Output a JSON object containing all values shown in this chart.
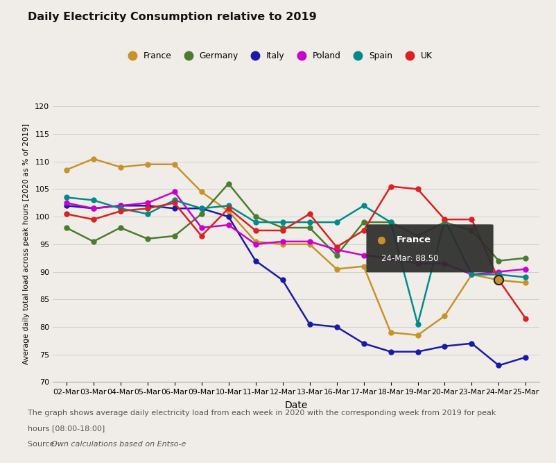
{
  "title": "Daily Electricity Consumption relative to 2019",
  "xlabel": "Date",
  "ylabel": "Average daily total load across peak hours [2020 as % of 2019]",
  "background_color": "#f0ede8",
  "plot_bg_color": "#f0ede8",
  "dates": [
    "02-Mar",
    "03-Mar",
    "04-Mar",
    "05-Mar",
    "06-Mar",
    "09-Mar",
    "10-Mar",
    "11-Mar",
    "12-Mar",
    "13-Mar",
    "16-Mar",
    "17-Mar",
    "18-Mar",
    "19-Mar",
    "20-Mar",
    "23-Mar",
    "24-Mar",
    "25-Mar"
  ],
  "series": {
    "France": {
      "color": "#c8922a",
      "values": [
        108.5,
        110.5,
        109.0,
        109.5,
        109.5,
        104.5,
        101.0,
        95.5,
        95.0,
        95.0,
        90.5,
        91.0,
        79.0,
        78.5,
        82.0,
        89.5,
        88.5,
        88.0
      ]
    },
    "Germany": {
      "color": "#4a7c2f",
      "values": [
        98.0,
        95.5,
        98.0,
        96.0,
        96.5,
        100.5,
        106.0,
        100.0,
        98.0,
        98.0,
        93.0,
        99.0,
        99.0,
        96.5,
        99.0,
        97.5,
        92.0,
        92.5
      ]
    },
    "Italy": {
      "color": "#1a1aaa",
      "values": [
        102.0,
        101.5,
        102.0,
        102.0,
        101.5,
        101.5,
        100.0,
        92.0,
        88.5,
        80.5,
        80.0,
        77.0,
        75.5,
        75.5,
        76.5,
        77.0,
        73.0,
        74.5
      ]
    },
    "Poland": {
      "color": "#cc00cc",
      "values": [
        102.5,
        101.5,
        102.0,
        102.5,
        104.5,
        98.0,
        98.5,
        95.0,
        95.5,
        95.5,
        94.0,
        93.0,
        92.5,
        91.5,
        91.5,
        89.5,
        90.0,
        90.5
      ]
    },
    "Spain": {
      "color": "#008b8b",
      "values": [
        103.5,
        103.0,
        101.5,
        100.5,
        103.0,
        101.5,
        102.0,
        99.0,
        99.0,
        99.0,
        99.0,
        102.0,
        99.0,
        80.5,
        99.5,
        89.5,
        89.5,
        89.0
      ]
    },
    "UK": {
      "color": "#dd2020",
      "values": [
        100.5,
        99.5,
        101.0,
        101.5,
        102.5,
        96.5,
        101.5,
        97.5,
        97.5,
        100.5,
        94.5,
        97.5,
        105.5,
        105.0,
        99.5,
        99.5,
        88.5,
        81.5
      ]
    }
  },
  "country_order": [
    "France",
    "Germany",
    "Italy",
    "Poland",
    "Spain",
    "UK"
  ],
  "ylim": [
    70,
    120
  ],
  "yticks": [
    70,
    75,
    80,
    85,
    90,
    95,
    100,
    105,
    110,
    115,
    120
  ],
  "tooltip_country": "France",
  "tooltip_date": "24-Mar",
  "tooltip_value": "88.50",
  "tooltip_idx": 16,
  "footnote_line1": "The graph shows average daily electricity load from each week in 2020 with the corresponding week from 2019 for peak",
  "footnote_line2": "hours [08:00-18:00]",
  "source_normal": "Source: ",
  "source_italic": "Own calculations based on Entso-e"
}
